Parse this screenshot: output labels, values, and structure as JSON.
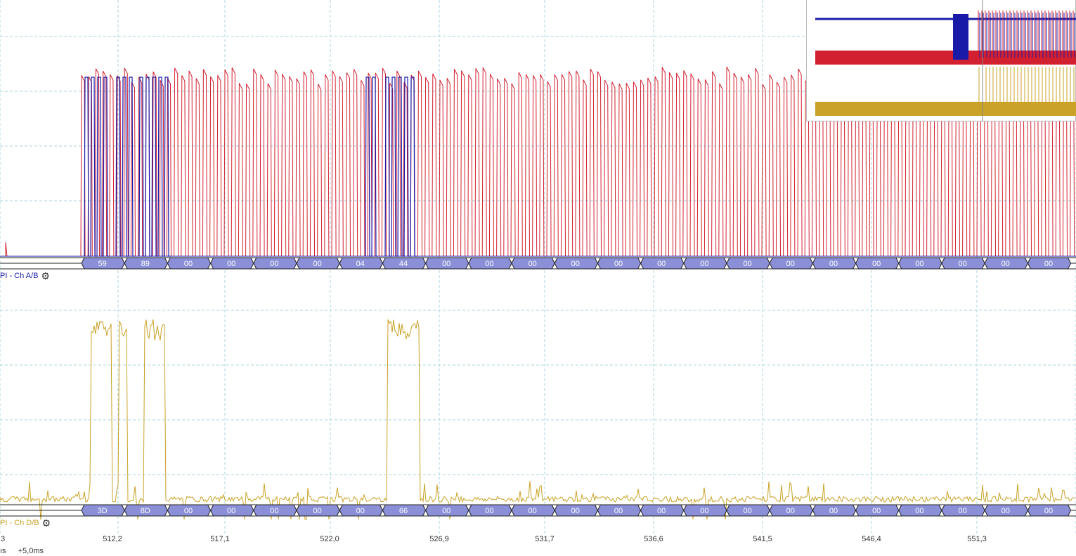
{
  "decoders": {
    "top": {
      "label": "PI - Ch A/B",
      "visible_label": "PI - Ch A/B",
      "color": "#1a1aa8",
      "bytes": [
        "59",
        "89",
        "00",
        "00",
        "00",
        "00",
        "04",
        "44",
        "00",
        "00",
        "00",
        "00",
        "00",
        "00",
        "00",
        "00",
        "00",
        "00",
        "00",
        "00",
        "00",
        "00",
        "00"
      ]
    },
    "bottom": {
      "label": "PI - Ch D/B",
      "visible_label": "PI - Ch D/B",
      "color": "#c9a227",
      "bytes": [
        "3D",
        "8D",
        "00",
        "00",
        "00",
        "00",
        "00",
        "66",
        "00",
        "00",
        "00",
        "00",
        "00",
        "00",
        "00",
        "00",
        "00",
        "00",
        "00",
        "00",
        "00",
        "00",
        "00"
      ]
    }
  },
  "time_axis": {
    "ticks": [
      "3",
      "512,2",
      "517,1",
      "522,0",
      "526,9",
      "531,7",
      "536,6",
      "541,5",
      "546,4",
      "551,3"
    ]
  },
  "bottom_bar": {
    "unit_fragment": "ıs",
    "offset": "+5,0ms"
  },
  "colors": {
    "channel_a": "#d22030",
    "channel_b": "#1a1aa8",
    "channel_d": "#c9a227",
    "packet_fill": "#8a8fd8",
    "grid": "#a8d4dc"
  }
}
